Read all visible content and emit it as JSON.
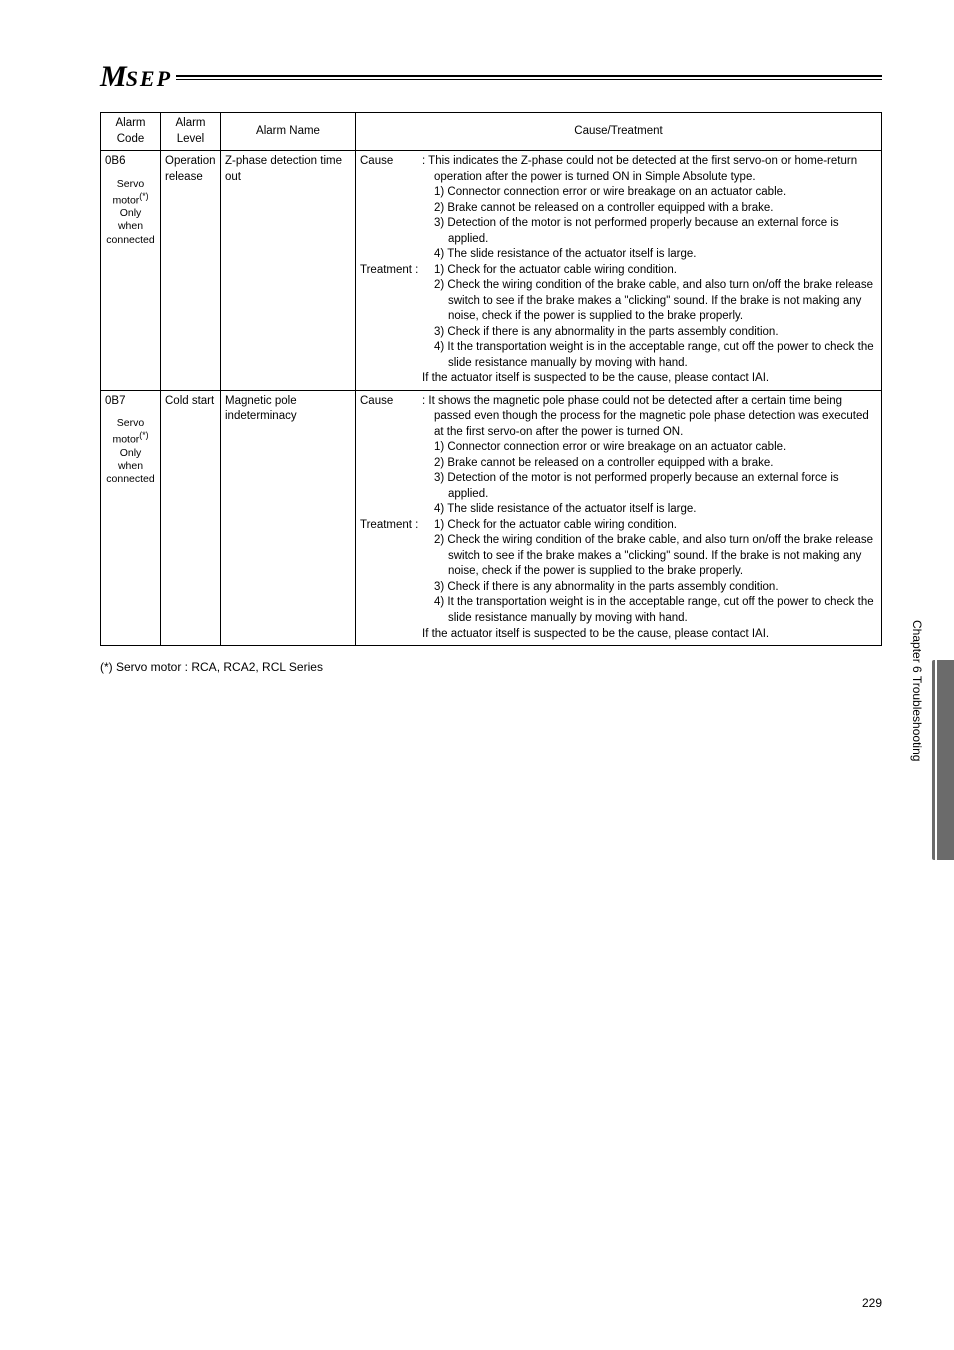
{
  "logo": {
    "m": "M",
    "sep": "SEP"
  },
  "header": {
    "code": "Alarm Code",
    "level": "Alarm Level",
    "name": "Alarm Name",
    "cause": "Cause/Treatment"
  },
  "rows": [
    {
      "code": "0B6",
      "code_note": "Servo motor(*) Only when connected",
      "level": "Operation release",
      "name": "Z-phase detection time out",
      "cause_label": "Cause",
      "cause": {
        "intro": ": This indicates the Z-phase could not be detected at the first servo-on or home-return operation after the power is turned ON in Simple Absolute type.",
        "items": [
          "1) Connector connection error or wire breakage on an actuator cable.",
          "2) Brake cannot be released on a controller equipped with a brake.",
          "3) Detection of the motor is not performed properly because an external force is applied.",
          "4) The slide resistance of the actuator itself is large."
        ]
      },
      "treat_label": "Treatment :",
      "treat": {
        "items": [
          "1) Check for the actuator cable wiring condition.",
          "2) Check the wiring condition of the brake cable, and also turn on/off the brake release switch to see if the brake makes a \"clicking\" sound. If the brake is not making any noise, check if the power is supplied to the brake properly.",
          "3) Check if there is any abnormality in the parts assembly condition.",
          "4) It the transportation weight is in the acceptable range, cut off the power to check the slide resistance manually by moving with hand."
        ],
        "outro": "If the actuator itself is suspected to be the cause, please contact IAI."
      }
    },
    {
      "code": "0B7",
      "code_note": "Servo motor(*) Only when connected",
      "level": "Cold start",
      "name": "Magnetic pole indeterminacy",
      "cause_label": "Cause",
      "cause": {
        "intro": ": It shows the magnetic pole phase could not be detected after a certain time being passed even though the process for the magnetic pole phase detection was executed at the first servo-on after the power is turned ON.",
        "items": [
          "1) Connector connection error or wire breakage on an actuator cable.",
          "2) Brake cannot be released on a controller equipped with a brake.",
          "3) Detection of the motor is not performed properly because an external force is applied.",
          "4) The slide resistance of the actuator itself is large."
        ]
      },
      "treat_label": "Treatment :",
      "treat": {
        "items": [
          "1) Check for the actuator cable wiring condition.",
          "2) Check the wiring condition of the brake cable, and also turn on/off the brake release switch to see if the brake makes a \"clicking\" sound. If the brake is not making any noise, check if the power is supplied to the brake properly.",
          "3) Check if there is any abnormality in the parts assembly condition.",
          "4) It the transportation weight is in the acceptable range, cut off the power to check the slide resistance manually by moving with hand."
        ],
        "outro": "If the actuator itself is suspected to be the cause, please contact IAI."
      }
    }
  ],
  "footnote": "(*) Servo motor : RCA, RCA2, RCL Series",
  "side_text": "Chapter 6 Troubleshooting",
  "page_num": "229"
}
